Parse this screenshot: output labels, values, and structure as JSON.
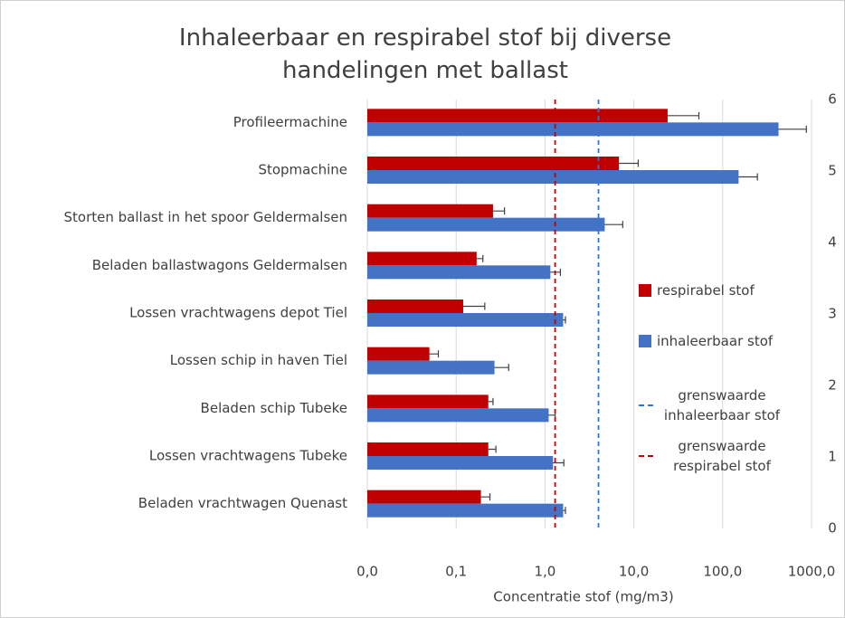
{
  "chart_data": {
    "type": "bar",
    "orientation": "horizontal",
    "title": "Inhaleerbaar en respirabel stof bij diverse handelingen met ballast",
    "x_label": "Concentratie stof (mg/m3)",
    "categories": [
      "Profileermachine",
      "Stopmachine",
      "Storten ballast in het spoor Geldermalsen",
      "Beladen ballastwagons Geldermalsen",
      "Lossen vrachtwagens depot Tiel",
      "Lossen schip in haven Tiel",
      "Beladen schip Tubeke",
      "Lossen vrachtwagens Tubeke",
      "Beladen vrachtwagen Quenast"
    ],
    "series": [
      {
        "name": "respirabel stof",
        "color": "#c00000",
        "values": [
          24,
          6.8,
          0.26,
          0.17,
          0.12,
          0.05,
          0.23,
          0.23,
          0.19
        ],
        "errors": [
          30,
          4.4,
          0.09,
          0.03,
          0.09,
          0.013,
          0.03,
          0.05,
          0.05
        ]
      },
      {
        "name": "inhaleerbaar stof",
        "color": "#4472c4",
        "values": [
          425,
          151,
          4.7,
          1.15,
          1.6,
          0.27,
          1.1,
          1.23,
          1.6
        ],
        "errors": [
          450,
          95,
          2.8,
          0.34,
          0.1,
          0.12,
          0.2,
          0.4,
          0.1
        ]
      }
    ],
    "reference_lines": [
      {
        "name": "grenswaarde inhaleerbaar stof",
        "color": "#2e75d6",
        "value": 4
      },
      {
        "name": "grenswaarde respirabel stof",
        "color": "#c00000",
        "value": 1.3
      }
    ],
    "xscale": "log",
    "xlim": [
      0.01,
      1000
    ],
    "xticks": [
      {
        "value": 0.01,
        "label": "0,0"
      },
      {
        "value": 0.1,
        "label": "0,1"
      },
      {
        "value": 1,
        "label": "1,0"
      },
      {
        "value": 10,
        "label": "10,0"
      },
      {
        "value": 100,
        "label": "100,0"
      },
      {
        "value": 1000,
        "label": "1000,0"
      }
    ],
    "y2lim": [
      0,
      6
    ],
    "y2ticks": [
      0,
      1,
      2,
      3,
      4,
      5,
      6
    ],
    "grid": true,
    "legend": "right"
  }
}
